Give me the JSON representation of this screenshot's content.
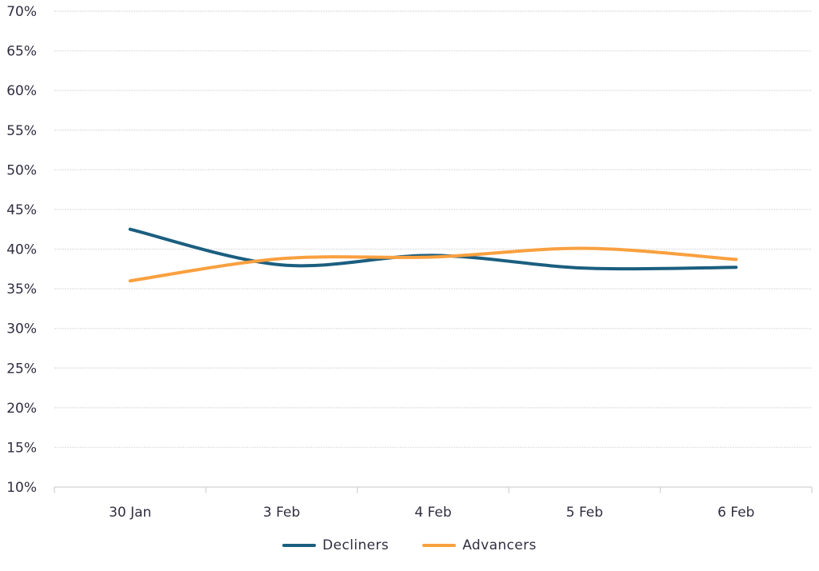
{
  "chart_data": {
    "type": "line",
    "smoothed": true,
    "title": "",
    "xlabel": "",
    "ylabel": "",
    "categories": [
      "30 Jan",
      "3 Feb",
      "4 Feb",
      "5 Feb",
      "6 Feb"
    ],
    "series": [
      {
        "name": "Decliners",
        "color": "#1b5e7f",
        "values": [
          42.5,
          38.0,
          39.2,
          37.6,
          37.7
        ]
      },
      {
        "name": "Advancers",
        "color": "#f9a03f",
        "values": [
          36.0,
          38.8,
          39.0,
          40.1,
          38.7
        ]
      }
    ],
    "y_axis": {
      "min": 10,
      "max": 70,
      "step": 5,
      "tick_suffix": "%"
    },
    "y_tick_labels": [
      "10%",
      "15%",
      "20%",
      "25%",
      "30%",
      "35%",
      "40%",
      "45%",
      "50%",
      "55%",
      "60%",
      "65%",
      "70%"
    ],
    "grid": "horizontal",
    "legend_position": "bottom",
    "colors": {
      "text": "#312e40",
      "gridline": "#e2e2e2",
      "axis_line": "#d9d9d9",
      "background": "#ffffff"
    }
  }
}
